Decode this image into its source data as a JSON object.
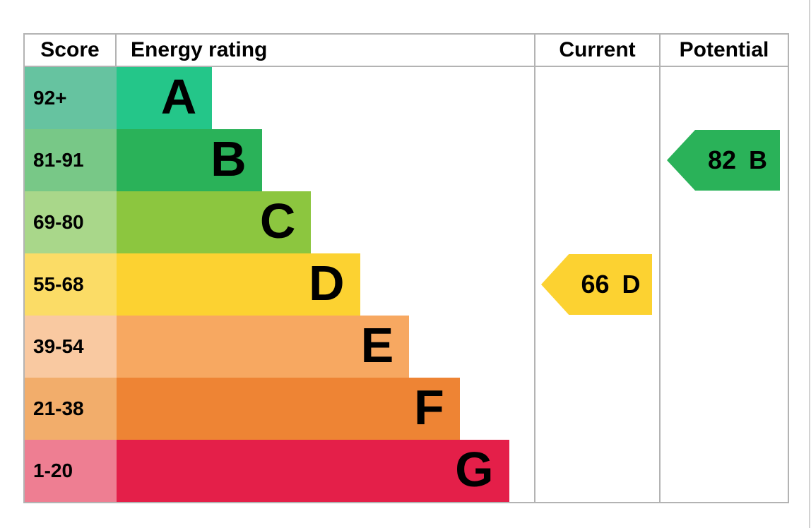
{
  "header": {
    "score": "Score",
    "energy_rating": "Energy rating",
    "current": "Current",
    "potential": "Potential"
  },
  "chart_data": {
    "type": "bar",
    "title": "Energy rating (EPC band chart)",
    "legend_position": "none",
    "bands": [
      {
        "score": "92+",
        "letter": "A",
        "bar_color": "#24c689",
        "score_bg": "#66c3a0",
        "width_pct": 22.9
      },
      {
        "score": "81-91",
        "letter": "B",
        "bar_color": "#2ab259",
        "score_bg": "#78c887",
        "width_pct": 34.8
      },
      {
        "score": "69-80",
        "letter": "C",
        "bar_color": "#8cc63f",
        "score_bg": "#a9d78a",
        "width_pct": 46.6
      },
      {
        "score": "55-68",
        "letter": "D",
        "bar_color": "#fcd231",
        "score_bg": "#fbdc66",
        "width_pct": 58.3
      },
      {
        "score": "39-54",
        "letter": "E",
        "bar_color": "#f7a861",
        "score_bg": "#f9c9a1",
        "width_pct": 70.1
      },
      {
        "score": "21-38",
        "letter": "F",
        "bar_color": "#ee8434",
        "score_bg": "#f2ad6b",
        "width_pct": 82.2
      },
      {
        "score": "1-20",
        "letter": "G",
        "bar_color": "#e41f49",
        "score_bg": "#ee7e92",
        "width_pct": 94.0
      }
    ],
    "current": {
      "value": "66",
      "letter": "D",
      "band_index": 3,
      "color": "#fcd231"
    },
    "potential": {
      "value": "82",
      "letter": "B",
      "band_index": 1,
      "color": "#2ab259"
    }
  },
  "colors": {
    "table_border": "#b3b3b3",
    "page_edge_line": "#d2d2d2",
    "text": "#000000"
  }
}
